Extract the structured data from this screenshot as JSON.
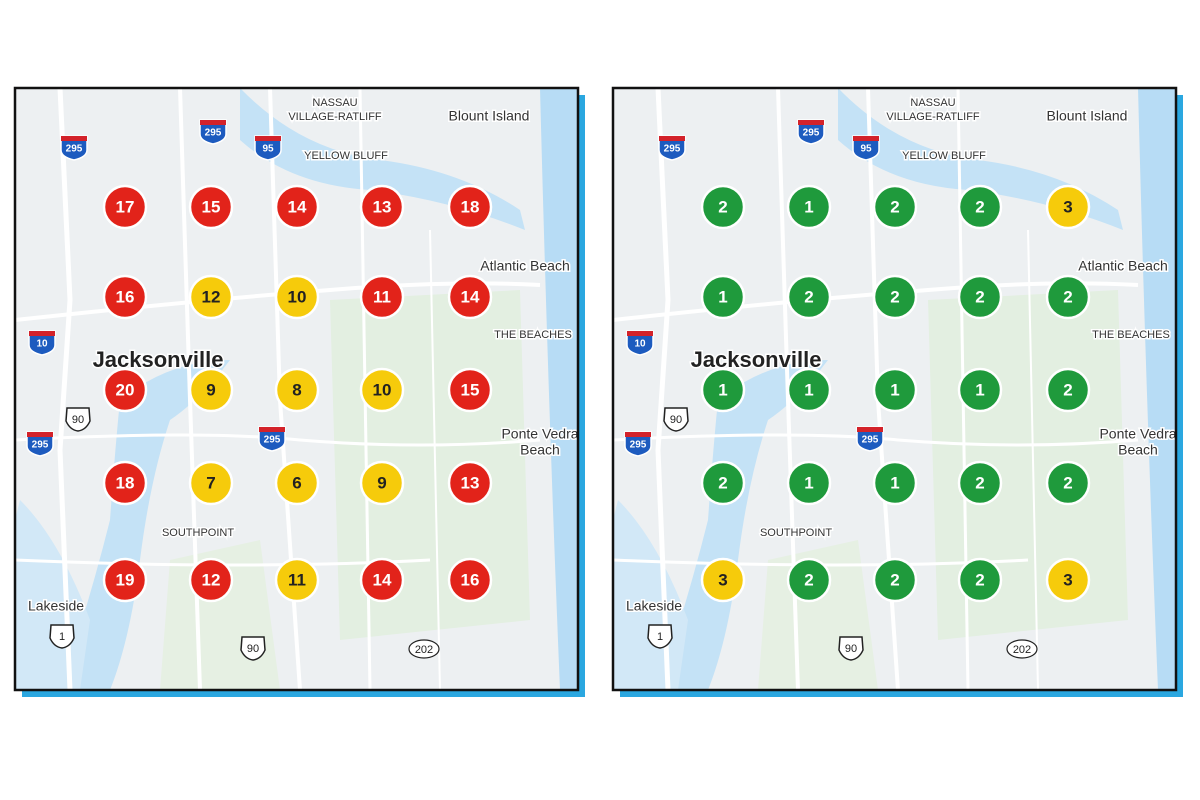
{
  "panels": [
    {
      "labels": {
        "nassau": [
          "NASSAU",
          "VILLAGE-RATLIFF"
        ],
        "blount_island": "Blount Island",
        "yellow_bluff": "YELLOW BLUFF",
        "atlantic_beach": "Atlantic Beach",
        "the_beaches": "THE BEACHES",
        "city": "Jacksonville",
        "ponte_vedra": [
          "Ponte Vedra",
          "Beach"
        ],
        "southpoint": "SOUTHPOINT",
        "lakeside": "Lakeside"
      },
      "shields": [
        {
          "text": "295",
          "kind": "interstate"
        },
        {
          "text": "295",
          "kind": "interstate"
        },
        {
          "text": "95",
          "kind": "interstate"
        },
        {
          "text": "10",
          "kind": "interstate"
        },
        {
          "text": "90",
          "kind": "us"
        },
        {
          "text": "295",
          "kind": "interstate"
        },
        {
          "text": "295",
          "kind": "interstate"
        },
        {
          "text": "1",
          "kind": "us"
        },
        {
          "text": "90",
          "kind": "us"
        },
        {
          "text": "202",
          "kind": "state"
        }
      ],
      "markers": [
        [
          {
            "value": 17,
            "color": "#e2231a"
          },
          {
            "value": 15,
            "color": "#e2231a"
          },
          {
            "value": 14,
            "color": "#e2231a"
          },
          {
            "value": 13,
            "color": "#e2231a"
          },
          {
            "value": 18,
            "color": "#e2231a"
          }
        ],
        [
          {
            "value": 16,
            "color": "#e2231a"
          },
          {
            "value": 12,
            "color": "#f6cb0b"
          },
          {
            "value": 10,
            "color": "#f6cb0b"
          },
          {
            "value": 11,
            "color": "#e2231a"
          },
          {
            "value": 14,
            "color": "#e2231a"
          }
        ],
        [
          {
            "value": 20,
            "color": "#e2231a"
          },
          {
            "value": 9,
            "color": "#f6cb0b"
          },
          {
            "value": 8,
            "color": "#f6cb0b"
          },
          {
            "value": 10,
            "color": "#f6cb0b"
          },
          {
            "value": 15,
            "color": "#e2231a"
          }
        ],
        [
          {
            "value": 18,
            "color": "#e2231a"
          },
          {
            "value": 7,
            "color": "#f6cb0b"
          },
          {
            "value": 6,
            "color": "#f6cb0b"
          },
          {
            "value": 9,
            "color": "#f6cb0b"
          },
          {
            "value": 13,
            "color": "#e2231a"
          }
        ],
        [
          {
            "value": 19,
            "color": "#e2231a"
          },
          {
            "value": 12,
            "color": "#e2231a"
          },
          {
            "value": 11,
            "color": "#f6cb0b"
          },
          {
            "value": 14,
            "color": "#e2231a"
          },
          {
            "value": 16,
            "color": "#e2231a"
          }
        ]
      ]
    },
    {
      "labels": {
        "nassau": [
          "NASSAU",
          "VILLAGE-RATLIFF"
        ],
        "blount_island": "Blount Island",
        "yellow_bluff": "YELLOW BLUFF",
        "atlantic_beach": "Atlantic Beach",
        "the_beaches": "THE BEACHES",
        "city": "Jacksonville",
        "ponte_vedra": [
          "Ponte Vedra",
          "Beach"
        ],
        "southpoint": "SOUTHPOINT",
        "lakeside": "Lakeside"
      },
      "shields": [
        {
          "text": "295",
          "kind": "interstate"
        },
        {
          "text": "295",
          "kind": "interstate"
        },
        {
          "text": "95",
          "kind": "interstate"
        },
        {
          "text": "10",
          "kind": "interstate"
        },
        {
          "text": "90",
          "kind": "us"
        },
        {
          "text": "295",
          "kind": "interstate"
        },
        {
          "text": "295",
          "kind": "interstate"
        },
        {
          "text": "1",
          "kind": "us"
        },
        {
          "text": "90",
          "kind": "us"
        },
        {
          "text": "202",
          "kind": "state"
        }
      ],
      "markers": [
        [
          {
            "value": 2,
            "color": "#1f9a3c"
          },
          {
            "value": 1,
            "color": "#1f9a3c"
          },
          {
            "value": 2,
            "color": "#1f9a3c"
          },
          {
            "value": 2,
            "color": "#1f9a3c"
          },
          {
            "value": 3,
            "color": "#f6cb0b"
          }
        ],
        [
          {
            "value": 1,
            "color": "#1f9a3c"
          },
          {
            "value": 2,
            "color": "#1f9a3c"
          },
          {
            "value": 2,
            "color": "#1f9a3c"
          },
          {
            "value": 2,
            "color": "#1f9a3c"
          },
          {
            "value": 2,
            "color": "#1f9a3c"
          }
        ],
        [
          {
            "value": 1,
            "color": "#1f9a3c"
          },
          {
            "value": 1,
            "color": "#1f9a3c"
          },
          {
            "value": 1,
            "color": "#1f9a3c"
          },
          {
            "value": 1,
            "color": "#1f9a3c"
          },
          {
            "value": 2,
            "color": "#1f9a3c"
          }
        ],
        [
          {
            "value": 2,
            "color": "#1f9a3c"
          },
          {
            "value": 1,
            "color": "#1f9a3c"
          },
          {
            "value": 1,
            "color": "#1f9a3c"
          },
          {
            "value": 2,
            "color": "#1f9a3c"
          },
          {
            "value": 2,
            "color": "#1f9a3c"
          }
        ],
        [
          {
            "value": 3,
            "color": "#f6cb0b"
          },
          {
            "value": 2,
            "color": "#1f9a3c"
          },
          {
            "value": 2,
            "color": "#1f9a3c"
          },
          {
            "value": 2,
            "color": "#1f9a3c"
          },
          {
            "value": 3,
            "color": "#f6cb0b"
          }
        ]
      ]
    }
  ]
}
